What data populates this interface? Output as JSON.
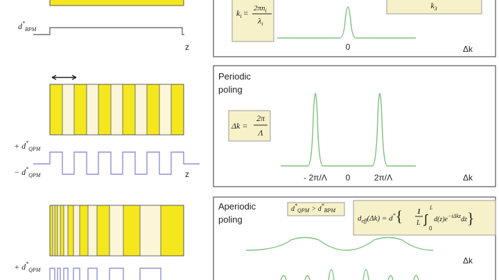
{
  "panels": [
    {
      "left": {
        "d": {
          "base": "d",
          "sup": "*",
          "sub": "BPM"
        },
        "z": "z"
      },
      "right": {
        "formula": {
          "lhs": "k",
          "lhs_sub": "i",
          "eq": "=",
          "num": "2πn",
          "num_sub": "i",
          "den": "λ",
          "den_sub": "i"
        },
        "k3": {
          "base": "k",
          "sub": "3"
        },
        "ticks": [
          "0"
        ],
        "axis": "Δk"
      }
    },
    {
      "left": {
        "plus": {
          "sign": "+",
          "base": "d",
          "sup": "*",
          "sub": "QPM"
        },
        "minus": {
          "sign": "−",
          "base": "d",
          "sup": "*",
          "sub": "QPM"
        },
        "z": "z"
      },
      "right": {
        "title": [
          "Periodic",
          "poling"
        ],
        "formula": {
          "lhs": "Δk",
          "eq": "=",
          "num": "2π",
          "den": "Λ"
        },
        "ticks": [
          "- 2π/Λ",
          "0",
          "2π/Λ"
        ],
        "axis": "Δk"
      }
    },
    {
      "left": {
        "plus": {
          "sign": "+",
          "base": "d",
          "sup": "*",
          "sub": "QPM"
        }
      },
      "right": {
        "title": [
          "Aperiodic",
          "poling"
        ],
        "condition": {
          "a": {
            "base": "d",
            "sup": "*",
            "sub": "QPM"
          },
          "op": ">",
          "b": {
            "base": "d",
            "sup": "*",
            "sub": "BPM"
          }
        },
        "formula": {
          "d": "d",
          "eff": "eff",
          "arg": "(Δk)",
          "eq": "=",
          "dstar": "d",
          "star": "*",
          "open": "{",
          "one": "1",
          "L": "L",
          "int": "∫",
          "lo": "0",
          "hi": "L",
          "integrand": "d(z)e",
          "exp": "−iΔkz",
          "dz": "dz",
          "close": "}"
        },
        "axis": "Δk"
      }
    }
  ]
}
